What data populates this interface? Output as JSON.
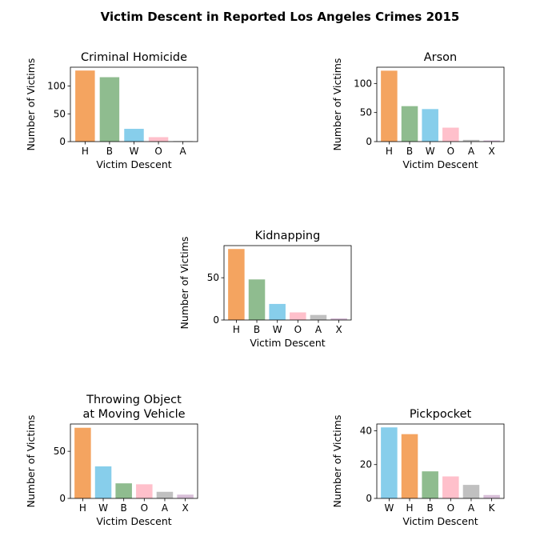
{
  "figure": {
    "title": "Victim Descent in Reported Los Angeles Crimes 2015"
  },
  "colors": {
    "H": "#F4A460",
    "B": "#8FBC8F",
    "W": "#87CEEB",
    "O": "#FFC0CB",
    "A": "#C0C0C0",
    "X": "#D8BFD8",
    "K": "#D8BFD8"
  },
  "chart_data": [
    {
      "type": "bar",
      "title": "Criminal Homicide",
      "xlabel": "Victim Descent",
      "ylabel": "Number of Victims",
      "categories": [
        "H",
        "B",
        "W",
        "O",
        "A"
      ],
      "values": [
        128,
        116,
        23,
        8,
        1
      ],
      "ylim": [
        0,
        134
      ],
      "yticks": [
        0,
        50,
        100
      ]
    },
    {
      "type": "bar",
      "title": "Arson",
      "xlabel": "Victim Descent",
      "ylabel": "Number of Victims",
      "categories": [
        "H",
        "B",
        "W",
        "O",
        "A",
        "X"
      ],
      "values": [
        122,
        61,
        56,
        24,
        3,
        2
      ],
      "ylim": [
        0,
        128
      ],
      "yticks": [
        0,
        50,
        100
      ]
    },
    {
      "type": "bar",
      "title": "Kidnapping",
      "xlabel": "Victim Descent",
      "ylabel": "Number of Victims",
      "categories": [
        "H",
        "B",
        "W",
        "O",
        "A",
        "X"
      ],
      "values": [
        84,
        48,
        19,
        9,
        6,
        2
      ],
      "ylim": [
        0,
        88
      ],
      "yticks": [
        0,
        50
      ]
    },
    {
      "type": "bar",
      "title": [
        "Throwing Object",
        "at Moving Vehicle"
      ],
      "xlabel": "Victim Descent",
      "ylabel": "Number of Victims",
      "categories": [
        "H",
        "W",
        "B",
        "O",
        "A",
        "X"
      ],
      "values": [
        75,
        34,
        16,
        15,
        7,
        4
      ],
      "ylim": [
        0,
        79
      ],
      "yticks": [
        0,
        50
      ]
    },
    {
      "type": "bar",
      "title": "Pickpocket",
      "xlabel": "Victim Descent",
      "ylabel": "Number of Victims",
      "categories": [
        "W",
        "H",
        "B",
        "O",
        "A",
        "K"
      ],
      "values": [
        42,
        38,
        16,
        13,
        8,
        2
      ],
      "ylim": [
        0,
        44
      ],
      "yticks": [
        0,
        20,
        40
      ]
    }
  ]
}
